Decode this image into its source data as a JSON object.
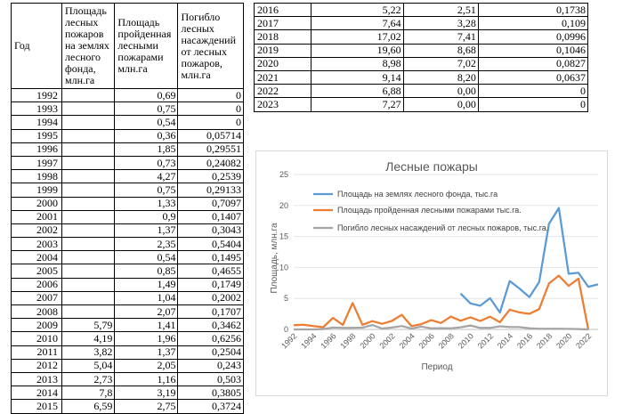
{
  "left_table": {
    "headers": [
      "Год",
      "Площадь лесных пожаров на землях лесного фонда, млн.га",
      "Площадь пройденная лесными пожарами млн.га",
      "Погибло лесных насаждений от лесных пожаров, млн.га"
    ],
    "rows": [
      [
        "1992",
        "",
        "0,69",
        "0"
      ],
      [
        "1993",
        "",
        "0,75",
        "0"
      ],
      [
        "1994",
        "",
        "0,54",
        "0"
      ],
      [
        "1995",
        "",
        "0,36",
        "0,05714"
      ],
      [
        "1996",
        "",
        "1,85",
        "0,29551"
      ],
      [
        "1997",
        "",
        "0,73",
        "0,24082"
      ],
      [
        "1998",
        "",
        "4,27",
        "0,2539"
      ],
      [
        "1999",
        "",
        "0,75",
        "0,29133"
      ],
      [
        "2000",
        "",
        "1,33",
        "0,7097"
      ],
      [
        "2001",
        "",
        "0,9",
        "0,1407"
      ],
      [
        "2002",
        "",
        "1,37",
        "0,3043"
      ],
      [
        "2003",
        "",
        "2,35",
        "0,5404"
      ],
      [
        "2004",
        "",
        "0,54",
        "0,1495"
      ],
      [
        "2005",
        "",
        "0,85",
        "0,4655"
      ],
      [
        "2006",
        "",
        "1,49",
        "0,1749"
      ],
      [
        "2007",
        "",
        "1,04",
        "0,2002"
      ],
      [
        "2008",
        "",
        "2,07",
        "0,1707"
      ],
      [
        "2009",
        "5,79",
        "1,41",
        "0,3462"
      ],
      [
        "2010",
        "4,19",
        "1,96",
        "0,6256"
      ],
      [
        "2011",
        "3,82",
        "1,37",
        "0,2504"
      ],
      [
        "2012",
        "5,04",
        "2,05",
        "0,243"
      ],
      [
        "2013",
        "2,73",
        "1,16",
        "0,503"
      ],
      [
        "2014",
        "7,8",
        "3,19",
        "0,3805"
      ],
      [
        "2015",
        "6,59",
        "2,75",
        "0,3724"
      ]
    ]
  },
  "right_table": {
    "rows": [
      [
        "2016",
        "5,22",
        "2,51",
        "0,1738"
      ],
      [
        "2017",
        "7,64",
        "3,28",
        "0,109"
      ],
      [
        "2018",
        "17,02",
        "7,41",
        "0,0996"
      ],
      [
        "2019",
        "19,60",
        "8,68",
        "0,1046"
      ],
      [
        "2020",
        "8,98",
        "7,02",
        "0,0827"
      ],
      [
        "2021",
        "9,14",
        "8,20",
        "0,0637"
      ],
      [
        "2022",
        "6,88",
        "0,00",
        "0"
      ],
      [
        "2023",
        "7,27",
        "0,00",
        "0"
      ]
    ]
  },
  "chart_data": {
    "type": "line",
    "title": "Лесные пожары",
    "xlabel": "Период",
    "ylabel": "Площадь, млн.га",
    "ylim": [
      0,
      25
    ],
    "yticks": [
      0,
      5,
      10,
      15,
      20,
      25
    ],
    "x": [
      1992,
      1993,
      1994,
      1995,
      1996,
      1997,
      1998,
      1999,
      2000,
      2001,
      2002,
      2003,
      2004,
      2005,
      2006,
      2007,
      2008,
      2009,
      2010,
      2011,
      2012,
      2013,
      2014,
      2015,
      2016,
      2017,
      2018,
      2019,
      2020,
      2021,
      2022,
      2023
    ],
    "xticks": [
      "1992",
      "1994",
      "1996",
      "1998",
      "2000",
      "2002",
      "2004",
      "2006",
      "2008",
      "2010",
      "2012",
      "2014",
      "2016",
      "2018",
      "2020",
      "2022"
    ],
    "grid": true,
    "legend": "top-right",
    "series": [
      {
        "name": "Площадь на землях лесного фонда,  тыс.га",
        "color": "#5b9bd5",
        "values": [
          null,
          null,
          null,
          null,
          null,
          null,
          null,
          null,
          null,
          null,
          null,
          null,
          null,
          null,
          null,
          null,
          null,
          5.79,
          4.19,
          3.82,
          5.04,
          2.73,
          7.8,
          6.59,
          5.22,
          7.64,
          17.02,
          19.6,
          8.98,
          9.14,
          6.88,
          7.27
        ]
      },
      {
        "name": "Площадь пройденная лесными пожарами тыс.га.",
        "color": "#ed7d31",
        "values": [
          0.69,
          0.75,
          0.54,
          0.36,
          1.85,
          0.73,
          4.27,
          0.75,
          1.33,
          0.9,
          1.37,
          2.35,
          0.54,
          0.85,
          1.49,
          1.04,
          2.07,
          1.41,
          1.96,
          1.37,
          2.05,
          1.16,
          3.19,
          2.75,
          2.51,
          3.28,
          7.41,
          8.68,
          7.02,
          8.2,
          0,
          null
        ]
      },
      {
        "name": "Погибло лесных насаждений от лесных пожаров, тыс.га.",
        "color": "#a5a5a5",
        "values": [
          0,
          0,
          0,
          0.05714,
          0.29551,
          0.24082,
          0.2539,
          0.29133,
          0.7097,
          0.1407,
          0.3043,
          0.5404,
          0.1495,
          0.4655,
          0.1749,
          0.2002,
          0.1707,
          0.3462,
          0.6256,
          0.2504,
          0.243,
          0.503,
          0.3805,
          0.3724,
          0.1738,
          0.109,
          0.0996,
          0.1046,
          0.0827,
          0.0637,
          0,
          null
        ]
      }
    ]
  }
}
